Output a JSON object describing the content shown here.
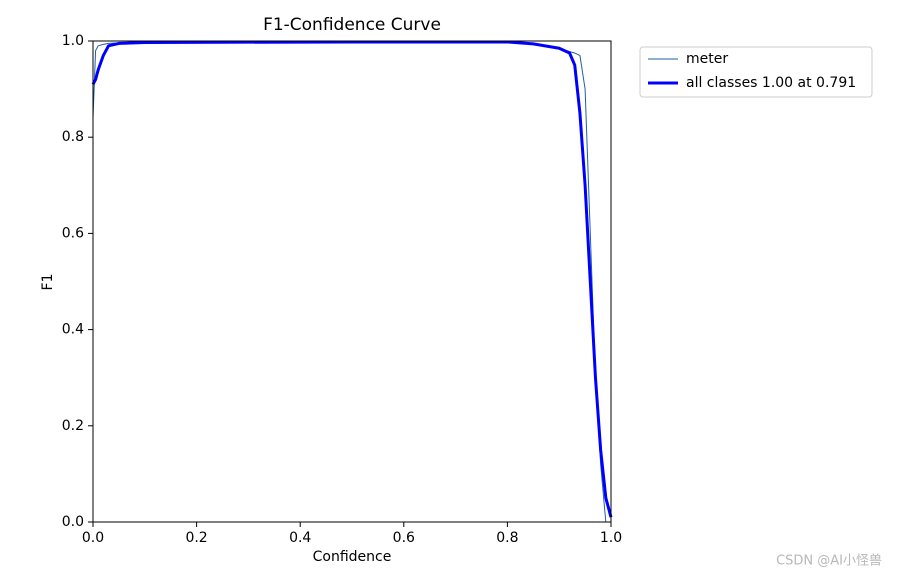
{
  "chart_data": {
    "type": "line",
    "title": "F1-Confidence Curve",
    "xlabel": "Confidence",
    "ylabel": "F1",
    "x": [
      0,
      0.005,
      0.01,
      0.02,
      0.03,
      0.05,
      0.1,
      0.5,
      0.8,
      0.85,
      0.9,
      0.92,
      0.93,
      0.94,
      0.95,
      0.96,
      0.97,
      0.98,
      0.99,
      1.0
    ],
    "series": [
      {
        "name": "meter",
        "color": "#1f5f9f",
        "width": 1,
        "values": [
          0.84,
          0.98,
          0.99,
          0.993,
          0.995,
          0.996,
          0.997,
          0.998,
          0.998,
          0.995,
          0.985,
          0.978,
          0.975,
          0.97,
          0.9,
          0.6,
          0.3,
          0.12,
          0.0,
          0.0
        ]
      },
      {
        "name": "all classes 1.00 at 0.791",
        "color": "#0000ff",
        "width": 3,
        "values": [
          0.91,
          0.92,
          0.94,
          0.97,
          0.99,
          0.995,
          0.997,
          0.998,
          0.998,
          0.994,
          0.985,
          0.975,
          0.95,
          0.85,
          0.7,
          0.5,
          0.3,
          0.15,
          0.05,
          0.01
        ]
      }
    ],
    "xlim": [
      0,
      1
    ],
    "ylim": [
      0,
      1
    ],
    "xticks": [
      {
        "value": 0,
        "label": "0.0"
      },
      0.2,
      0.4,
      0.6,
      0.8,
      {
        "value": 1,
        "label": "1.0"
      }
    ],
    "yticks": [
      {
        "value": 0,
        "label": "0.0"
      },
      0.2,
      0.4,
      0.6,
      0.8,
      {
        "value": 1,
        "label": "1.0"
      }
    ],
    "legend": "outside",
    "watermark": "CSDN @AI小怪兽"
  }
}
